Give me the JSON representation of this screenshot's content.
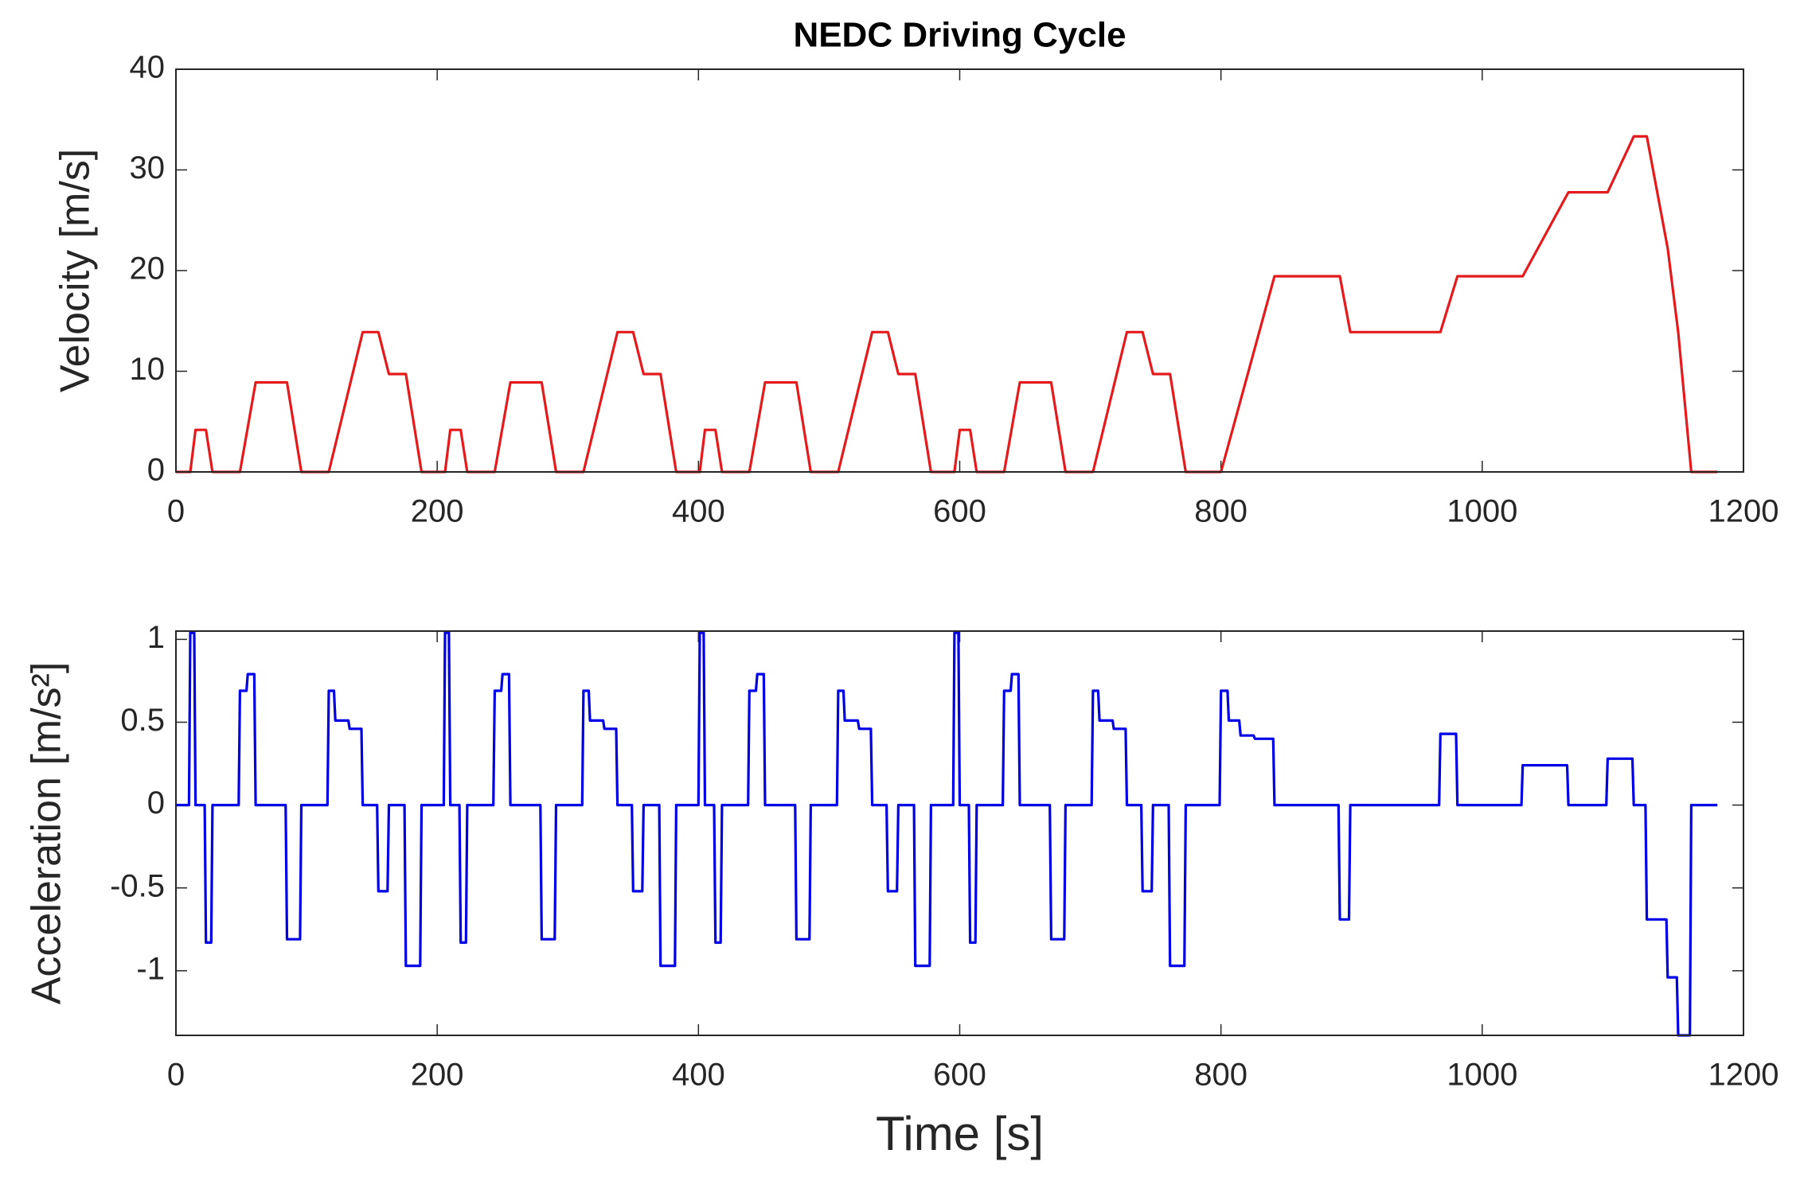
{
  "chart_data": [
    {
      "type": "line",
      "title": "NEDC Driving Cycle",
      "ylabel": "Velocity [m/s]",
      "color": "#e41a1c",
      "xlim": [
        0,
        1200
      ],
      "ylim": [
        0,
        40
      ],
      "xticks": [
        0,
        200,
        400,
        600,
        800,
        1000,
        1200
      ],
      "yticks": [
        0,
        10,
        20,
        30,
        40
      ],
      "x": [
        0,
        11,
        15,
        23,
        28,
        49,
        61,
        85,
        96,
        117,
        143,
        155,
        163,
        176,
        188,
        195,
        206,
        210,
        218,
        223,
        244,
        256,
        280,
        291,
        312,
        338,
        350,
        358,
        371,
        383,
        390,
        401,
        405,
        413,
        418,
        439,
        451,
        475,
        486,
        507,
        533,
        545,
        553,
        566,
        578,
        585,
        596,
        600,
        608,
        613,
        634,
        646,
        670,
        681,
        702,
        728,
        740,
        748,
        761,
        773,
        780,
        800,
        841,
        891,
        899,
        968,
        981,
        1031,
        1066,
        1096,
        1116,
        1126,
        1142,
        1150,
        1160,
        1180
      ],
      "values": [
        0,
        0,
        4.17,
        4.17,
        0,
        0,
        8.89,
        8.89,
        0,
        0,
        13.89,
        13.89,
        9.72,
        9.72,
        0,
        0,
        0,
        4.17,
        4.17,
        0,
        0,
        8.89,
        8.89,
        0,
        0,
        13.89,
        13.89,
        9.72,
        9.72,
        0,
        0,
        0,
        4.17,
        4.17,
        0,
        0,
        8.89,
        8.89,
        0,
        0,
        13.89,
        13.89,
        9.72,
        9.72,
        0,
        0,
        0,
        4.17,
        4.17,
        0,
        0,
        8.89,
        8.89,
        0,
        0,
        13.89,
        13.89,
        9.72,
        9.72,
        0,
        0,
        0,
        19.44,
        19.44,
        13.89,
        13.89,
        19.44,
        19.44,
        27.78,
        27.78,
        33.33,
        33.33,
        22.22,
        13.89,
        0,
        0
      ]
    },
    {
      "type": "line",
      "xlabel": "Time [s]",
      "ylabel": "Acceleration [m/s²]",
      "color": "#0000e6",
      "xlim": [
        0,
        1200
      ],
      "ylim": [
        -1.39,
        1.05
      ],
      "xticks": [
        0,
        200,
        400,
        600,
        800,
        1000,
        1200
      ],
      "yticks": [
        -1,
        -0.5,
        0,
        0.5,
        1
      ],
      "x": [
        0,
        10,
        11,
        14,
        15,
        22,
        23,
        27,
        28,
        48,
        49,
        54,
        55,
        60,
        61,
        84,
        85,
        95,
        96,
        116,
        117,
        121,
        122,
        132,
        133,
        142,
        143,
        154,
        155,
        162,
        163,
        175,
        176,
        187,
        188,
        205,
        206,
        209,
        210,
        217,
        218,
        222,
        223,
        243,
        244,
        249,
        250,
        255,
        256,
        279,
        280,
        290,
        291,
        311,
        312,
        316,
        317,
        327,
        328,
        337,
        338,
        349,
        350,
        357,
        358,
        370,
        371,
        382,
        383,
        400,
        401,
        404,
        405,
        412,
        413,
        417,
        418,
        438,
        439,
        444,
        445,
        450,
        451,
        474,
        475,
        485,
        486,
        506,
        507,
        511,
        512,
        522,
        523,
        532,
        533,
        544,
        545,
        552,
        553,
        565,
        566,
        577,
        578,
        595,
        596,
        599,
        600,
        607,
        608,
        612,
        613,
        633,
        634,
        639,
        640,
        645,
        646,
        669,
        670,
        680,
        681,
        701,
        702,
        706,
        707,
        717,
        718,
        727,
        728,
        739,
        740,
        747,
        748,
        760,
        761,
        772,
        773,
        799,
        800,
        805,
        806,
        814,
        815,
        825,
        826,
        840,
        841,
        890,
        891,
        898,
        899,
        967,
        968,
        980,
        981,
        1030,
        1031,
        1065,
        1066,
        1095,
        1096,
        1115,
        1116,
        1125,
        1126,
        1141,
        1142,
        1149,
        1150,
        1159,
        1160,
        1180
      ],
      "values": [
        0,
        0,
        1.04,
        1.04,
        0,
        0,
        -0.83,
        -0.83,
        0,
        0,
        0.69,
        0.69,
        0.79,
        0.79,
        0,
        0,
        -0.81,
        -0.81,
        0,
        0,
        0.69,
        0.69,
        0.51,
        0.51,
        0.46,
        0.46,
        0,
        0,
        -0.52,
        -0.52,
        0,
        0,
        -0.97,
        -0.97,
        0,
        0,
        1.04,
        1.04,
        0,
        0,
        -0.83,
        -0.83,
        0,
        0,
        0.69,
        0.69,
        0.79,
        0.79,
        0,
        0,
        -0.81,
        -0.81,
        0,
        0,
        0.69,
        0.69,
        0.51,
        0.51,
        0.46,
        0.46,
        0,
        0,
        -0.52,
        -0.52,
        0,
        0,
        -0.97,
        -0.97,
        0,
        0,
        1.04,
        1.04,
        0,
        0,
        -0.83,
        -0.83,
        0,
        0,
        0.69,
        0.69,
        0.79,
        0.79,
        0,
        0,
        -0.81,
        -0.81,
        0,
        0,
        0.69,
        0.69,
        0.51,
        0.51,
        0.46,
        0.46,
        0,
        0,
        -0.52,
        -0.52,
        0,
        0,
        -0.97,
        -0.97,
        0,
        0,
        1.04,
        1.04,
        0,
        0,
        -0.83,
        -0.83,
        0,
        0,
        0.69,
        0.69,
        0.79,
        0.79,
        0,
        0,
        -0.81,
        -0.81,
        0,
        0,
        0.69,
        0.69,
        0.51,
        0.51,
        0.46,
        0.46,
        0,
        0,
        -0.52,
        -0.52,
        0,
        0,
        -0.97,
        -0.97,
        0,
        0,
        0.69,
        0.69,
        0.51,
        0.51,
        0.42,
        0.42,
        0.4,
        0.4,
        0,
        0,
        -0.69,
        -0.69,
        0,
        0,
        0.43,
        0.43,
        0,
        0,
        0.24,
        0.24,
        0,
        0,
        0.28,
        0.28,
        0,
        0,
        -0.69,
        -0.69,
        -1.04,
        -1.04,
        -1.39,
        -1.39,
        0,
        0
      ]
    }
  ]
}
